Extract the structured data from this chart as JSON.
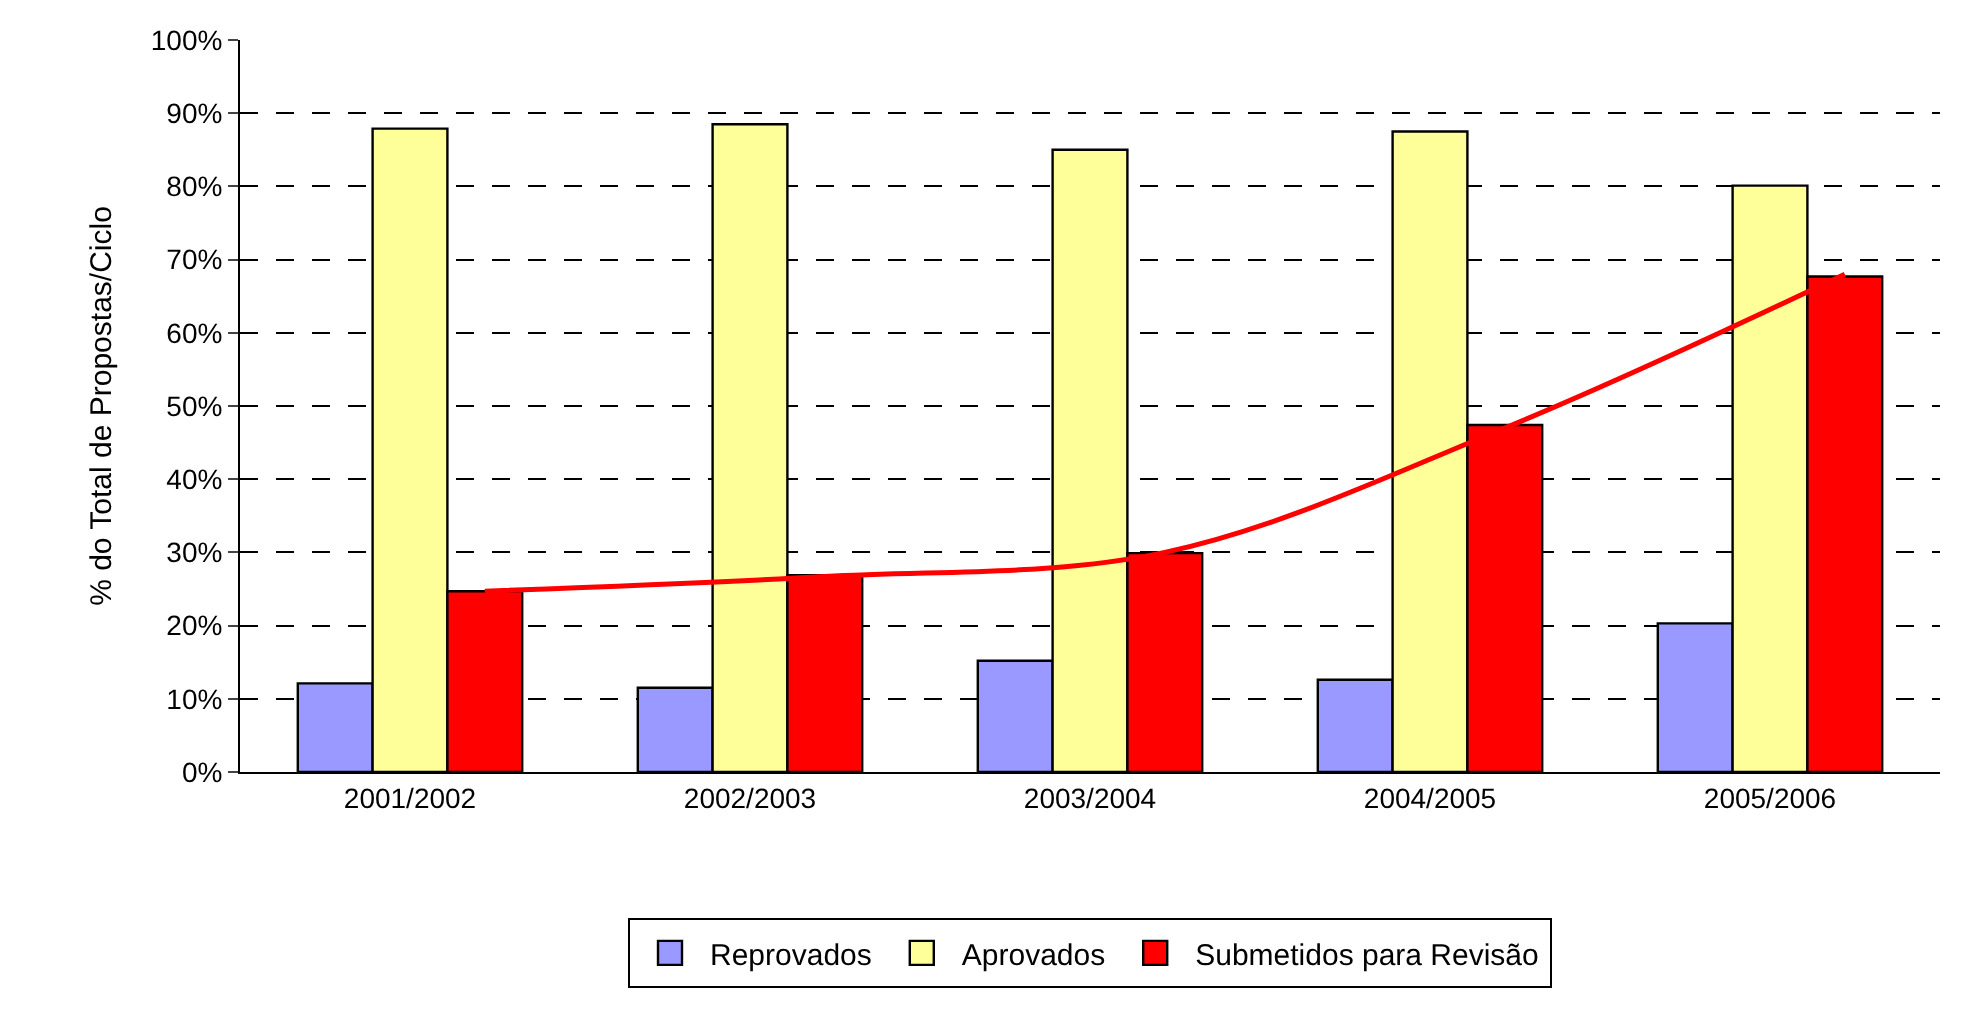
{
  "chart_data": {
    "type": "bar",
    "ylabel": "% do Total de Propostas/Ciclo",
    "categories": [
      "2001/2002",
      "2002/2003",
      "2003/2004",
      "2004/2005",
      "2005/2006"
    ],
    "series": [
      {
        "name": "Reprovados",
        "color": "#9999ff",
        "values": [
          12.1,
          11.5,
          15.2,
          12.6,
          20.3
        ]
      },
      {
        "name": "Aprovados",
        "color": "#ffff99",
        "values": [
          87.9,
          88.5,
          85.0,
          87.5,
          80.1
        ]
      },
      {
        "name": "Submetidos para Revisão",
        "color": "#ff0000",
        "values": [
          24.7,
          26.9,
          29.9,
          47.4,
          67.7
        ]
      },
      {
        "type": "line",
        "color": "#ff0000",
        "values": [
          24.7,
          26.7,
          30.0,
          47.0,
          68.0
        ]
      }
    ],
    "ylim": [
      0,
      100
    ],
    "yticks": [
      {
        "value": 0,
        "label": "0%"
      },
      {
        "value": 10,
        "label": "10%"
      },
      {
        "value": 20,
        "label": "20%"
      },
      {
        "value": 30,
        "label": "30%"
      },
      {
        "value": 40,
        "label": "40%"
      },
      {
        "value": 50,
        "label": "50%"
      },
      {
        "value": 60,
        "label": "60%"
      },
      {
        "value": 70,
        "label": "70%"
      },
      {
        "value": 80,
        "label": "80%"
      },
      {
        "value": 90,
        "label": "90%"
      },
      {
        "value": 100,
        "label": "100%"
      }
    ],
    "grid": "y",
    "legend": "bottom"
  }
}
